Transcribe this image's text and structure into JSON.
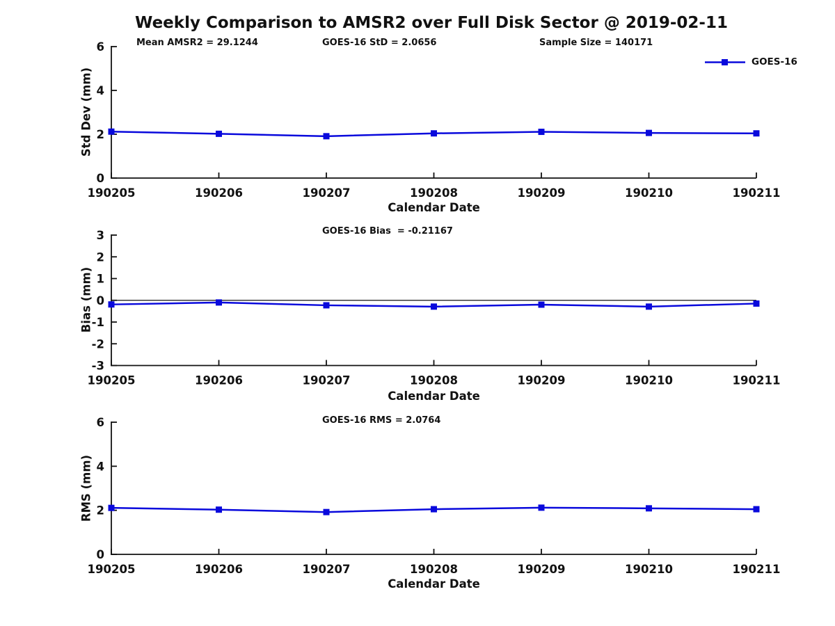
{
  "figure": {
    "title": "Weekly Comparison to AMSR2 over Full Disk Sector @ 2019-02-11",
    "line_color": "#0909DC",
    "text_color": "#111111",
    "background": "#FFFFFF",
    "legend": {
      "label": "GOES-16",
      "marker": "filled-square"
    }
  },
  "chart_data": [
    {
      "type": "line",
      "categories": [
        "190205",
        "190206",
        "190207",
        "190208",
        "190209",
        "190210",
        "190211"
      ],
      "series": [
        {
          "name": "GOES-16",
          "values": [
            2.12,
            2.02,
            1.91,
            2.04,
            2.11,
            2.06,
            2.04
          ]
        }
      ],
      "xlabel": "Calendar Date",
      "ylabel": "Std Dev (mm)",
      "ylim": [
        0,
        6
      ],
      "yticks": [
        0,
        2,
        4,
        6
      ],
      "grid": false,
      "zero_line": false,
      "legend_position": "top-right",
      "annotations": [
        "Mean AMSR2 = 29.1244",
        "GOES-16 StD = 2.0656",
        "Sample Size = 140171"
      ]
    },
    {
      "type": "line",
      "categories": [
        "190205",
        "190206",
        "190207",
        "190208",
        "190209",
        "190210",
        "190211"
      ],
      "series": [
        {
          "name": "GOES-16",
          "values": [
            -0.19,
            -0.1,
            -0.23,
            -0.29,
            -0.2,
            -0.29,
            -0.15
          ]
        }
      ],
      "xlabel": "Calendar Date",
      "ylabel": "Bias (mm)",
      "ylim": [
        -3,
        3
      ],
      "yticks": [
        3,
        2,
        1,
        0,
        -1,
        -2,
        -3
      ],
      "grid": false,
      "zero_line": true,
      "legend_position": "none",
      "annotations": [
        "GOES-16 Bias  = -0.21167"
      ]
    },
    {
      "type": "line",
      "categories": [
        "190205",
        "190206",
        "190207",
        "190208",
        "190209",
        "190210",
        "190211"
      ],
      "series": [
        {
          "name": "GOES-16",
          "values": [
            2.11,
            2.03,
            1.92,
            2.05,
            2.12,
            2.09,
            2.05
          ]
        }
      ],
      "xlabel": "Calendar Date",
      "ylabel": "RMS (mm)",
      "ylim": [
        0,
        6
      ],
      "yticks": [
        0,
        2,
        4,
        6
      ],
      "grid": false,
      "zero_line": false,
      "legend_position": "none",
      "annotations": [
        "GOES-16 RMS = 2.0764"
      ]
    }
  ]
}
